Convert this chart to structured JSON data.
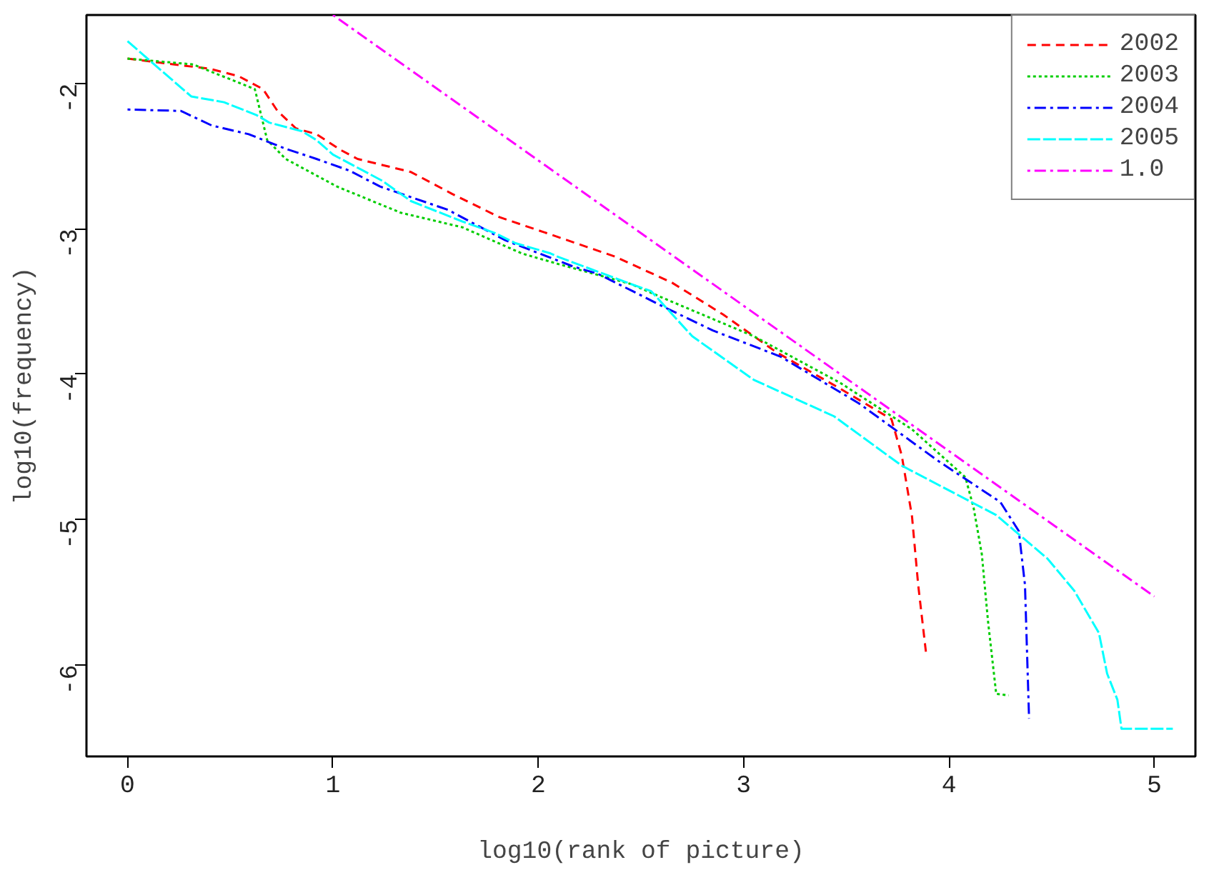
{
  "chart_data": {
    "type": "line",
    "xlabel": "log10(rank of picture)",
    "ylabel": "log10(frequency)",
    "xlim": [
      -0.2,
      5.2
    ],
    "ylim": [
      -6.63,
      -1.53
    ],
    "xticks": [
      0,
      1,
      2,
      3,
      4,
      5
    ],
    "yticks": [
      -2,
      -3,
      -4,
      -5,
      -6
    ],
    "grid": false,
    "legend": "top right",
    "series": [
      {
        "name": "2002",
        "color": "#ff0000",
        "line_style": "dashed",
        "x": [
          0,
          0.4,
          0.54,
          0.66,
          0.73,
          0.82,
          0.92,
          1.04,
          1.12,
          1.38,
          1.58,
          1.81,
          2.04,
          2.37,
          2.65,
          2.9,
          3.16,
          3.47,
          3.72,
          3.77,
          3.82,
          3.85,
          3.89
        ],
        "values": [
          -1.83,
          -1.9,
          -1.95,
          -2.04,
          -2.19,
          -2.31,
          -2.35,
          -2.46,
          -2.52,
          -2.61,
          -2.76,
          -2.92,
          -3.03,
          -3.19,
          -3.37,
          -3.59,
          -3.85,
          -4.1,
          -4.31,
          -4.56,
          -4.98,
          -5.45,
          -5.94
        ]
      },
      {
        "name": "2003",
        "color": "#00cd00",
        "line_style": "dotted",
        "x": [
          0,
          0.32,
          0.39,
          0.62,
          0.68,
          0.77,
          1.02,
          1.33,
          1.63,
          1.92,
          2.09,
          2.45,
          2.63,
          3.05,
          3.47,
          3.82,
          4.08,
          4.12,
          4.16,
          4.19,
          4.23,
          4.29
        ],
        "values": [
          -1.83,
          -1.87,
          -1.91,
          -2.04,
          -2.39,
          -2.52,
          -2.71,
          -2.89,
          -2.99,
          -3.17,
          -3.24,
          -3.38,
          -3.49,
          -3.74,
          -4.06,
          -4.38,
          -4.71,
          -4.92,
          -5.24,
          -5.7,
          -6.2,
          -6.21
        ]
      },
      {
        "name": "2004",
        "color": "#0000ff",
        "line_style": "dashdot",
        "x": [
          0,
          0.26,
          0.41,
          0.59,
          0.77,
          0.92,
          1.08,
          1.23,
          1.56,
          1.84,
          2.17,
          2.29,
          2.46,
          2.6,
          2.85,
          3.18,
          3.56,
          3.95,
          4.25,
          4.34,
          4.37,
          4.39
        ],
        "values": [
          -2.18,
          -2.19,
          -2.29,
          -2.35,
          -2.45,
          -2.52,
          -2.6,
          -2.71,
          -2.87,
          -3.08,
          -3.26,
          -3.31,
          -3.43,
          -3.53,
          -3.7,
          -3.88,
          -4.2,
          -4.6,
          -4.88,
          -5.08,
          -5.45,
          -6.37
        ]
      },
      {
        "name": "2005",
        "color": "#00ffff",
        "line_style": "longdash",
        "x": [
          0,
          0.13,
          0.31,
          0.47,
          0.63,
          0.69,
          0.85,
          0.92,
          1.0,
          1.12,
          1.24,
          1.38,
          1.63,
          1.79,
          1.89,
          2.06,
          2.09,
          2.45,
          2.55,
          2.75,
          3.05,
          3.44,
          3.77,
          4.23,
          4.48,
          4.61,
          4.73,
          4.77,
          4.82,
          4.84,
          5.09
        ],
        "values": [
          -1.71,
          -1.87,
          -2.09,
          -2.13,
          -2.22,
          -2.27,
          -2.33,
          -2.39,
          -2.49,
          -2.58,
          -2.67,
          -2.81,
          -2.95,
          -3.03,
          -3.1,
          -3.17,
          -3.19,
          -3.38,
          -3.43,
          -3.74,
          -4.04,
          -4.29,
          -4.63,
          -4.97,
          -5.27,
          -5.49,
          -5.78,
          -6.06,
          -6.24,
          -6.44,
          -6.44
        ]
      },
      {
        "name": "1.0",
        "color": "#ff00ff",
        "line_style": "dashdot",
        "x": [
          1.0,
          5.0
        ],
        "values": [
          -1.53,
          -5.53
        ]
      }
    ]
  }
}
